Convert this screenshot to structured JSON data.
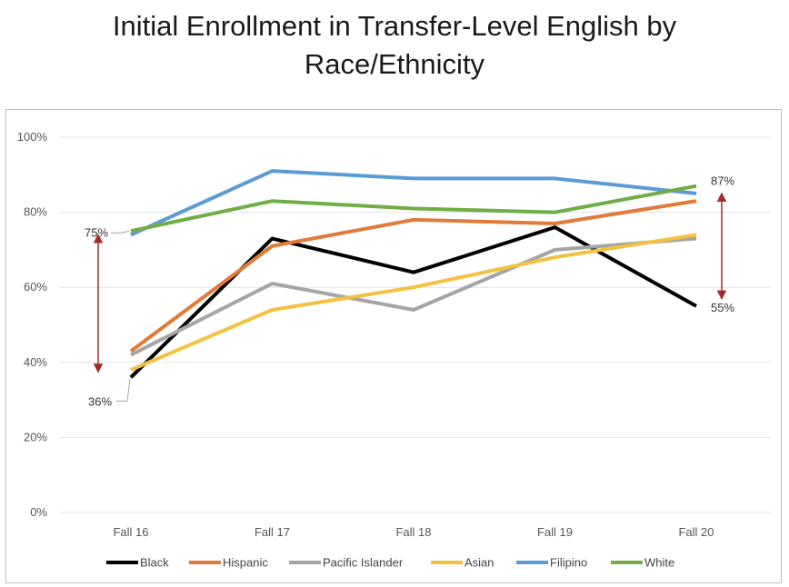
{
  "chart_data": {
    "type": "line",
    "title_lines": [
      "Initial Enrollment in Transfer-Level English by",
      "Race/Ethnicity"
    ],
    "categories": [
      "Fall 16",
      "Fall 17",
      "Fall 18",
      "Fall 19",
      "Fall 20"
    ],
    "y_ticks": [
      "0%",
      "20%",
      "40%",
      "60%",
      "80%",
      "100%"
    ],
    "ylim": [
      0,
      100
    ],
    "grid": true,
    "legend_position": "bottom",
    "series": [
      {
        "name": "Black",
        "color": "#000000",
        "values": [
          36,
          73,
          64,
          76,
          55
        ]
      },
      {
        "name": "Hispanic",
        "color": "#E07B39",
        "values": [
          43,
          71,
          78,
          77,
          83
        ]
      },
      {
        "name": "Pacific Islander",
        "color": "#A5A5A5",
        "values": [
          42,
          61,
          54,
          70,
          73
        ]
      },
      {
        "name": "Asian",
        "color": "#F4C242",
        "values": [
          38,
          54,
          60,
          68,
          74
        ]
      },
      {
        "name": "Filipino",
        "color": "#5B9BD5",
        "values": [
          74,
          91,
          89,
          89,
          85
        ]
      },
      {
        "name": "White",
        "color": "#70AD47",
        "values": [
          75,
          83,
          81,
          80,
          87
        ]
      }
    ],
    "annotations": [
      {
        "text": "75%",
        "value": 75,
        "category_index": 0
      },
      {
        "text": "36%",
        "value": 36,
        "category_index": 0
      },
      {
        "text": "87%",
        "value": 87,
        "category_index": 4
      },
      {
        "text": "55%",
        "value": 55,
        "category_index": 4
      }
    ],
    "arrow_color": "#A52A2A"
  }
}
